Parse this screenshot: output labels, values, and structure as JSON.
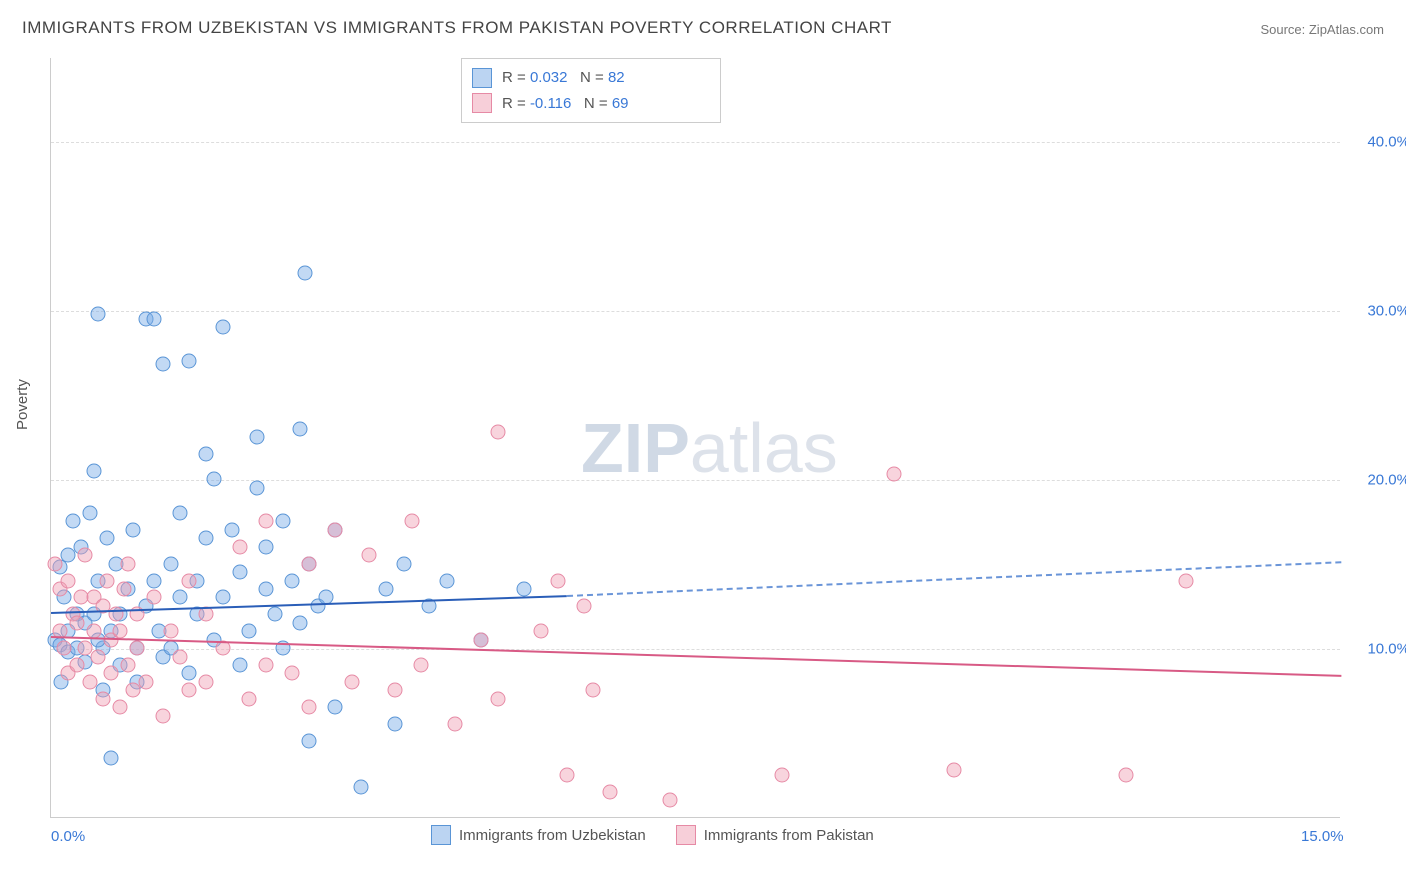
{
  "title": "IMMIGRANTS FROM UZBEKISTAN VS IMMIGRANTS FROM PAKISTAN POVERTY CORRELATION CHART",
  "source": "Source: ZipAtlas.com",
  "y_axis_label": "Poverty",
  "watermark": {
    "bold": "ZIP",
    "rest": "atlas"
  },
  "chart": {
    "type": "scatter",
    "xlim": [
      0,
      15
    ],
    "ylim": [
      0,
      45
    ],
    "x_ticks": [
      {
        "value": 0,
        "label": "0.0%"
      },
      {
        "value": 15,
        "label": "15.0%"
      }
    ],
    "y_ticks": [
      {
        "value": 10,
        "label": "10.0%"
      },
      {
        "value": 20,
        "label": "20.0%"
      },
      {
        "value": 30,
        "label": "30.0%"
      },
      {
        "value": 40,
        "label": "40.0%"
      }
    ],
    "grid_color": "#dddddd",
    "background_color": "#ffffff",
    "series": [
      {
        "name": "Immigrants from Uzbekistan",
        "color_fill": "rgba(120,170,230,0.45)",
        "color_stroke": "#5a95d6",
        "trend_color": "#2a5eb8",
        "stats": {
          "R": "0.032",
          "N": "82"
        },
        "trend": {
          "x1": 0,
          "y1": 12.2,
          "x2_solid": 6,
          "y2_solid": 13.2,
          "x2": 15,
          "y2": 15.2
        },
        "points": [
          [
            0.05,
            10.5
          ],
          [
            0.1,
            14.8
          ],
          [
            0.1,
            10.2
          ],
          [
            0.12,
            8.0
          ],
          [
            0.15,
            13.0
          ],
          [
            0.2,
            15.5
          ],
          [
            0.2,
            11.0
          ],
          [
            0.2,
            9.8
          ],
          [
            0.25,
            17.5
          ],
          [
            0.3,
            10.0
          ],
          [
            0.3,
            12.0
          ],
          [
            0.35,
            16.0
          ],
          [
            0.4,
            9.2
          ],
          [
            0.4,
            11.5
          ],
          [
            0.45,
            18.0
          ],
          [
            0.5,
            12.0
          ],
          [
            0.5,
            20.5
          ],
          [
            0.55,
            14.0
          ],
          [
            0.6,
            7.5
          ],
          [
            0.6,
            10.0
          ],
          [
            0.65,
            16.5
          ],
          [
            0.7,
            3.5
          ],
          [
            0.7,
            11.0
          ],
          [
            0.75,
            15.0
          ],
          [
            0.8,
            9.0
          ],
          [
            0.8,
            12.0
          ],
          [
            0.55,
            29.8
          ],
          [
            0.55,
            10.5
          ],
          [
            0.9,
            13.5
          ],
          [
            0.95,
            17.0
          ],
          [
            1.0,
            10.0
          ],
          [
            1.0,
            8.0
          ],
          [
            1.1,
            29.5
          ],
          [
            1.1,
            12.5
          ],
          [
            1.2,
            14.0
          ],
          [
            1.2,
            29.5
          ],
          [
            1.25,
            11.0
          ],
          [
            1.3,
            26.8
          ],
          [
            1.3,
            9.5
          ],
          [
            1.4,
            15.0
          ],
          [
            1.4,
            10.0
          ],
          [
            1.5,
            18.0
          ],
          [
            1.5,
            13.0
          ],
          [
            1.6,
            27.0
          ],
          [
            1.6,
            8.5
          ],
          [
            1.7,
            14.0
          ],
          [
            1.7,
            12.0
          ],
          [
            1.8,
            16.5
          ],
          [
            1.8,
            21.5
          ],
          [
            1.9,
            20.0
          ],
          [
            1.9,
            10.5
          ],
          [
            2.0,
            29.0
          ],
          [
            2.0,
            13.0
          ],
          [
            2.1,
            17.0
          ],
          [
            2.2,
            14.5
          ],
          [
            2.2,
            9.0
          ],
          [
            2.3,
            11.0
          ],
          [
            2.4,
            19.5
          ],
          [
            2.4,
            22.5
          ],
          [
            2.5,
            13.5
          ],
          [
            2.5,
            16.0
          ],
          [
            2.6,
            12.0
          ],
          [
            2.7,
            17.5
          ],
          [
            2.7,
            10.0
          ],
          [
            2.8,
            14.0
          ],
          [
            2.9,
            11.5
          ],
          [
            2.9,
            23.0
          ],
          [
            2.95,
            32.2
          ],
          [
            3.0,
            15.0
          ],
          [
            3.0,
            4.5
          ],
          [
            3.1,
            12.5
          ],
          [
            3.2,
            13.0
          ],
          [
            3.3,
            6.5
          ],
          [
            3.3,
            17.0
          ],
          [
            3.6,
            1.8
          ],
          [
            3.9,
            13.5
          ],
          [
            4.0,
            5.5
          ],
          [
            4.1,
            15.0
          ],
          [
            4.4,
            12.5
          ],
          [
            4.6,
            14.0
          ],
          [
            5.0,
            10.5
          ],
          [
            5.5,
            13.5
          ]
        ]
      },
      {
        "name": "Immigrants from Pakistan",
        "color_fill": "rgba(240,160,180,0.45)",
        "color_stroke": "#e68aa5",
        "trend_color": "#d85a85",
        "stats": {
          "R": "-0.116",
          "N": "69"
        },
        "trend": {
          "x1": 0,
          "y1": 10.8,
          "x2": 15,
          "y2": 8.5
        },
        "points": [
          [
            0.05,
            15.0
          ],
          [
            0.1,
            11.0
          ],
          [
            0.1,
            13.5
          ],
          [
            0.15,
            10.0
          ],
          [
            0.2,
            14.0
          ],
          [
            0.2,
            8.5
          ],
          [
            0.25,
            12.0
          ],
          [
            0.3,
            9.0
          ],
          [
            0.3,
            11.5
          ],
          [
            0.35,
            13.0
          ],
          [
            0.4,
            10.0
          ],
          [
            0.4,
            15.5
          ],
          [
            0.45,
            8.0
          ],
          [
            0.5,
            11.0
          ],
          [
            0.5,
            13.0
          ],
          [
            0.55,
            9.5
          ],
          [
            0.6,
            12.5
          ],
          [
            0.6,
            7.0
          ],
          [
            0.65,
            14.0
          ],
          [
            0.7,
            10.5
          ],
          [
            0.7,
            8.5
          ],
          [
            0.75,
            12.0
          ],
          [
            0.8,
            6.5
          ],
          [
            0.8,
            11.0
          ],
          [
            0.85,
            13.5
          ],
          [
            0.9,
            9.0
          ],
          [
            0.9,
            15.0
          ],
          [
            0.95,
            7.5
          ],
          [
            1.0,
            10.0
          ],
          [
            1.0,
            12.0
          ],
          [
            1.1,
            8.0
          ],
          [
            1.2,
            13.0
          ],
          [
            1.3,
            6.0
          ],
          [
            1.4,
            11.0
          ],
          [
            1.5,
            9.5
          ],
          [
            1.6,
            14.0
          ],
          [
            1.6,
            7.5
          ],
          [
            1.8,
            12.0
          ],
          [
            1.8,
            8.0
          ],
          [
            2.0,
            10.0
          ],
          [
            2.2,
            16.0
          ],
          [
            2.3,
            7.0
          ],
          [
            2.5,
            17.5
          ],
          [
            2.5,
            9.0
          ],
          [
            2.8,
            8.5
          ],
          [
            3.0,
            15.0
          ],
          [
            3.0,
            6.5
          ],
          [
            3.3,
            17.0
          ],
          [
            3.5,
            8.0
          ],
          [
            3.7,
            15.5
          ],
          [
            4.0,
            7.5
          ],
          [
            4.2,
            17.5
          ],
          [
            4.3,
            9.0
          ],
          [
            4.7,
            5.5
          ],
          [
            5.0,
            10.5
          ],
          [
            5.2,
            22.8
          ],
          [
            5.2,
            7.0
          ],
          [
            5.7,
            11.0
          ],
          [
            5.9,
            14.0
          ],
          [
            6.0,
            2.5
          ],
          [
            6.2,
            12.5
          ],
          [
            6.3,
            7.5
          ],
          [
            6.5,
            1.5
          ],
          [
            7.2,
            1.0
          ],
          [
            8.5,
            2.5
          ],
          [
            9.8,
            20.3
          ],
          [
            10.5,
            2.8
          ],
          [
            12.5,
            2.5
          ],
          [
            13.2,
            14.0
          ]
        ]
      }
    ]
  }
}
